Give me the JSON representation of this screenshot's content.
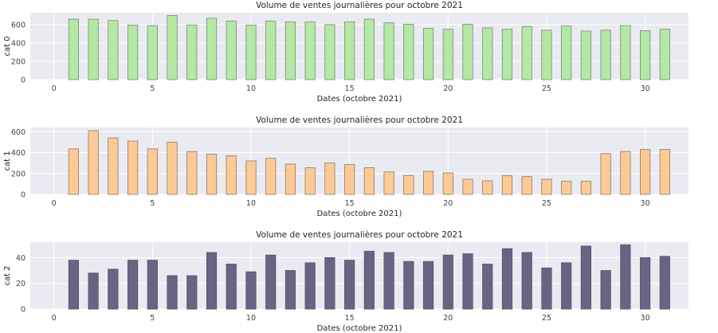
{
  "chart_data": [
    {
      "type": "bar",
      "title": "Volume de ventes journalières pour octobre 2021",
      "xlabel": "Dates (octobre 2021)",
      "ylabel": "cat 0",
      "x": [
        1,
        2,
        3,
        4,
        5,
        6,
        7,
        8,
        9,
        10,
        11,
        12,
        13,
        14,
        15,
        16,
        17,
        18,
        19,
        20,
        21,
        22,
        23,
        24,
        25,
        26,
        27,
        28,
        29,
        30,
        31
      ],
      "values": [
        660,
        660,
        645,
        595,
        590,
        700,
        595,
        670,
        640,
        595,
        640,
        630,
        630,
        600,
        630,
        660,
        620,
        605,
        560,
        550,
        605,
        565,
        550,
        580,
        540,
        585,
        530,
        540,
        590,
        535,
        550
      ],
      "xlim": [
        -1.2,
        32.2
      ],
      "ylim": [
        0,
        730
      ],
      "xticks": [
        0,
        5,
        10,
        15,
        20,
        25,
        30
      ],
      "yticks": [
        0,
        200,
        400,
        600
      ],
      "grid": true,
      "color": "#b3e8a5",
      "edge_color": "#7a8a75"
    },
    {
      "type": "bar",
      "title": "Volume de ventes journalières pour octobre 2021",
      "xlabel": "Dates (octobre 2021)",
      "ylabel": "cat 1",
      "x": [
        1,
        2,
        3,
        4,
        5,
        6,
        7,
        8,
        9,
        10,
        11,
        12,
        13,
        14,
        15,
        16,
        17,
        18,
        19,
        20,
        21,
        22,
        23,
        24,
        25,
        26,
        27,
        28,
        29,
        30,
        31
      ],
      "values": [
        435,
        610,
        540,
        510,
        435,
        500,
        410,
        385,
        370,
        320,
        345,
        290,
        255,
        300,
        285,
        255,
        215,
        180,
        220,
        205,
        145,
        130,
        180,
        170,
        145,
        125,
        125,
        390,
        410,
        430,
        430
      ],
      "xlim": [
        -1.2,
        32.2
      ],
      "ylim": [
        0,
        640
      ],
      "xticks": [
        0,
        5,
        10,
        15,
        20,
        25,
        30
      ],
      "yticks": [
        0,
        200,
        400,
        600
      ],
      "grid": true,
      "color": "#fdca93",
      "edge_color": "#8a7a6a"
    },
    {
      "type": "bar",
      "title": "Volume de ventes journalières pour octobre 2021",
      "xlabel": "Dates (octobre 2021)",
      "ylabel": "cat 2",
      "x": [
        1,
        2,
        3,
        4,
        5,
        6,
        7,
        8,
        9,
        10,
        11,
        12,
        13,
        14,
        15,
        16,
        17,
        18,
        19,
        20,
        21,
        22,
        23,
        24,
        25,
        26,
        27,
        28,
        29,
        30,
        31
      ],
      "values": [
        38,
        28,
        31,
        38,
        38,
        26,
        26,
        44,
        35,
        29,
        42,
        30,
        36,
        40,
        38,
        45,
        44,
        37,
        37,
        42,
        43,
        35,
        47,
        44,
        32,
        36,
        49,
        30,
        50,
        40,
        41
      ],
      "xlim": [
        -1.2,
        32.2
      ],
      "ylim": [
        0,
        52
      ],
      "xticks": [
        0,
        5,
        10,
        15,
        20,
        25,
        30
      ],
      "yticks": [
        0,
        20,
        40
      ],
      "grid": true,
      "color": "#6b6384",
      "edge_color": "#55506a"
    }
  ]
}
